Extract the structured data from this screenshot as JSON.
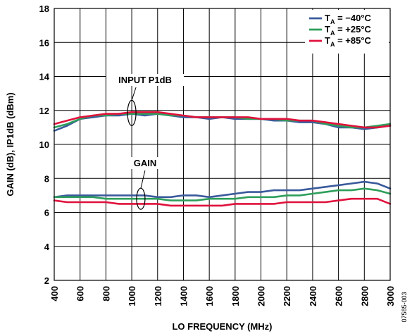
{
  "chart_data": {
    "type": "line",
    "title": "",
    "xlabel": "LO FREQUENCY (MHz)",
    "ylabel": "GAIN (dB), IP1dB (dBm)",
    "xlim": [
      400,
      3000
    ],
    "ylim": [
      2,
      18
    ],
    "x_ticks": [
      "400",
      "600",
      "800",
      "1000",
      "1200",
      "1400",
      "1600",
      "1800",
      "2000",
      "2200",
      "2400",
      "2600",
      "2800",
      "3000"
    ],
    "y_ticks": [
      "2",
      "4",
      "6",
      "8",
      "10",
      "12",
      "14",
      "16",
      "18"
    ],
    "grid": true,
    "legend_position": "top-right",
    "legend": [
      {
        "main": "T",
        "sub": "A",
        "suffix": " = −40°C",
        "color": "#3a5a9c"
      },
      {
        "main": "T",
        "sub": "A",
        "suffix": " = +25°C",
        "color": "#2e9e5b"
      },
      {
        "main": "T",
        "sub": "A",
        "suffix": " = +85°C",
        "color": "#e0113c"
      }
    ],
    "annotations": {
      "p1db_label": "INPUT P1dB",
      "gain_label": "GAIN"
    },
    "figure_id": "07585-003",
    "x": [
      400,
      500,
      600,
      700,
      800,
      900,
      1000,
      1100,
      1200,
      1300,
      1400,
      1500,
      1600,
      1700,
      1800,
      1900,
      2000,
      2100,
      2200,
      2300,
      2400,
      2500,
      2600,
      2700,
      2800,
      2900,
      3000
    ],
    "series": [
      {
        "group": "input-p1db",
        "legend_index": 0,
        "color": "#3a5a9c",
        "values": [
          10.8,
          11.1,
          11.5,
          11.6,
          11.7,
          11.7,
          11.8,
          11.7,
          11.8,
          11.7,
          11.6,
          11.6,
          11.5,
          11.6,
          11.5,
          11.5,
          11.5,
          11.4,
          11.4,
          11.3,
          11.3,
          11.2,
          11.0,
          11.0,
          10.9,
          11.0,
          11.1
        ]
      },
      {
        "group": "input-p1db",
        "legend_index": 1,
        "color": "#2e9e5b",
        "values": [
          11.0,
          11.2,
          11.5,
          11.7,
          11.7,
          11.8,
          11.8,
          11.8,
          11.8,
          11.7,
          11.7,
          11.6,
          11.6,
          11.6,
          11.6,
          11.5,
          11.5,
          11.5,
          11.4,
          11.4,
          11.4,
          11.2,
          11.1,
          11.0,
          11.0,
          11.1,
          11.2
        ]
      },
      {
        "group": "input-p1db",
        "legend_index": 2,
        "color": "#e0113c",
        "values": [
          11.2,
          11.4,
          11.6,
          11.7,
          11.8,
          11.8,
          11.9,
          11.9,
          11.9,
          11.8,
          11.7,
          11.6,
          11.6,
          11.6,
          11.6,
          11.6,
          11.5,
          11.5,
          11.5,
          11.4,
          11.4,
          11.3,
          11.2,
          11.1,
          11.0,
          11.0,
          11.1
        ]
      },
      {
        "group": "gain",
        "legend_index": 0,
        "color": "#3a5a9c",
        "values": [
          6.9,
          7.0,
          7.0,
          7.0,
          7.0,
          7.0,
          7.0,
          7.0,
          6.9,
          6.9,
          7.0,
          7.0,
          6.9,
          7.0,
          7.1,
          7.2,
          7.2,
          7.3,
          7.3,
          7.3,
          7.4,
          7.5,
          7.6,
          7.7,
          7.8,
          7.7,
          7.4
        ]
      },
      {
        "group": "gain",
        "legend_index": 1,
        "color": "#2e9e5b",
        "values": [
          6.9,
          6.9,
          6.9,
          6.9,
          6.8,
          6.8,
          6.8,
          6.8,
          6.8,
          6.7,
          6.7,
          6.7,
          6.8,
          6.8,
          6.8,
          6.9,
          6.9,
          6.9,
          7.0,
          7.0,
          7.1,
          7.2,
          7.3,
          7.3,
          7.4,
          7.3,
          7.1
        ]
      },
      {
        "group": "gain",
        "legend_index": 2,
        "color": "#e0113c",
        "values": [
          6.7,
          6.6,
          6.6,
          6.6,
          6.6,
          6.5,
          6.5,
          6.5,
          6.5,
          6.4,
          6.4,
          6.4,
          6.4,
          6.4,
          6.5,
          6.5,
          6.5,
          6.5,
          6.6,
          6.6,
          6.6,
          6.6,
          6.7,
          6.8,
          6.8,
          6.8,
          6.5
        ]
      }
    ]
  }
}
